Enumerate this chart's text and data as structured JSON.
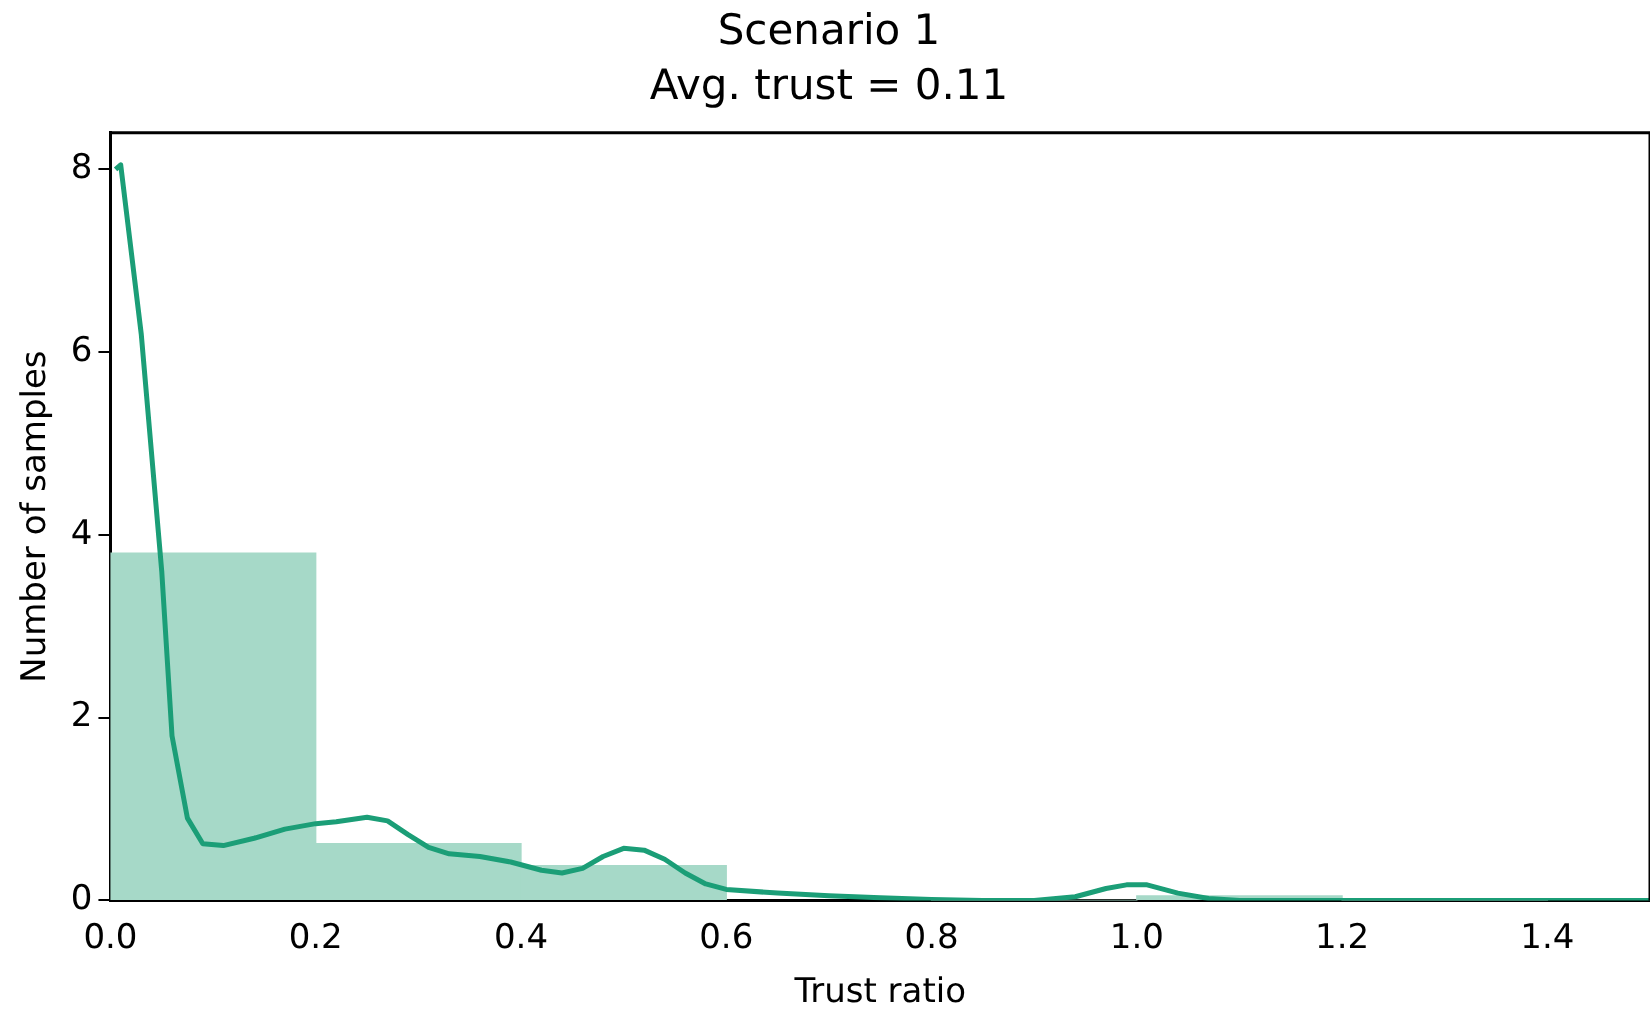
{
  "chart_data": {
    "type": "histogram",
    "title": "Scenario 1",
    "subtitle": "Avg. trust = 0.11",
    "xlabel": "Trust ratio",
    "ylabel": "Number of samples",
    "xlim": [
      0,
      1.5
    ],
    "xticks": [
      {
        "value": 0,
        "label": "0.0"
      },
      {
        "value": 0.2,
        "label": "0.2"
      },
      {
        "value": 0.4,
        "label": "0.4"
      },
      {
        "value": 0.6,
        "label": "0.6"
      },
      {
        "value": 0.8,
        "label": "0.8"
      },
      {
        "value": 1,
        "label": "1.0"
      },
      {
        "value": 1.2,
        "label": "1.2"
      },
      {
        "value": 1.4,
        "label": "1.4"
      }
    ],
    "ylim": [
      0,
      8.4
    ],
    "yticks": [
      0,
      2,
      4,
      6,
      8
    ],
    "grid": false,
    "series": [
      {
        "color": "#a6d9c8",
        "bins": [
          0,
          0.2,
          0.4,
          0.6,
          0.8,
          1.0,
          1.2,
          1.4
        ],
        "values": [
          3.8,
          0.62,
          0.38,
          null,
          0,
          0.05,
          0
        ]
      },
      {
        "type": "line",
        "color": "#1b9e77",
        "x": [
          0.005,
          0.01,
          0.03,
          0.05,
          0.06,
          0.075,
          0.09,
          0.11,
          0.14,
          0.17,
          0.2,
          0.22,
          0.25,
          0.27,
          0.29,
          0.31,
          0.33,
          0.36,
          0.39,
          0.42,
          0.44,
          0.46,
          0.48,
          0.5,
          0.52,
          0.54,
          0.56,
          0.58,
          0.6,
          0.65,
          0.7,
          0.75,
          0.8,
          0.85,
          0.9,
          0.94,
          0.97,
          0.99,
          1.01,
          1.04,
          1.07,
          1.1,
          1.2,
          1.3,
          1.4,
          1.5
        ],
        "values": [
          8.0,
          8.05,
          6.2,
          3.6,
          1.8,
          0.9,
          0.62,
          0.6,
          0.68,
          0.78,
          0.84,
          0.86,
          0.91,
          0.87,
          0.72,
          0.58,
          0.51,
          0.48,
          0.42,
          0.33,
          0.3,
          0.35,
          0.48,
          0.57,
          0.55,
          0.45,
          0.3,
          0.18,
          0.12,
          0.08,
          0.05,
          0.03,
          0.01,
          0,
          0,
          0.04,
          0.13,
          0.17,
          0.17,
          0.08,
          0.02,
          0,
          0,
          0,
          0,
          0
        ]
      }
    ]
  }
}
